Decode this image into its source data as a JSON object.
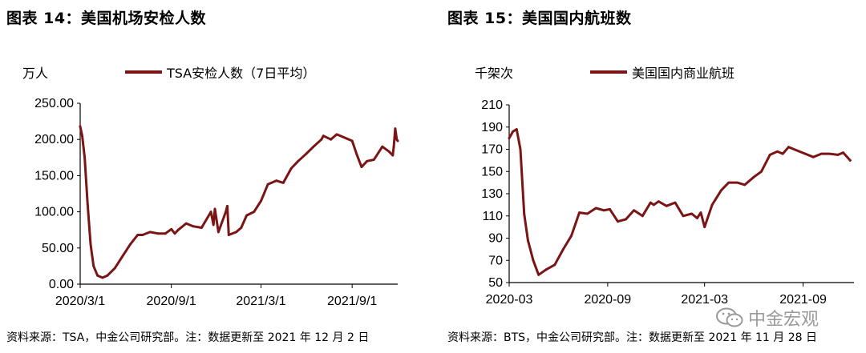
{
  "charts": [
    {
      "title": "图表 14：美国机场安检人数",
      "unit": "万人",
      "legend": "TSA安检人数（7日平均）",
      "source": "资料来源：TSA，中金公司研究部。注：数据更新至 2021 年 12 月 2 日"
    },
    {
      "title": "图表 15：美国国内航班数",
      "unit": "千架次",
      "legend": "美国国内商业航班",
      "source": "资料来源：BTS，中金公司研究部。注：数据更新至 2021 年 11 月 28 日"
    }
  ],
  "watermark": {
    "text": "中金宏观",
    "icon": "wechat-icon"
  },
  "colors": {
    "line": "#7b1414",
    "axis": "#000000"
  },
  "chart_data": [
    {
      "type": "line",
      "title": "图表 14：美国机场安检人数",
      "ylabel": "万人",
      "ylim": [
        0,
        250
      ],
      "yticks": [
        "0.00",
        "50.00",
        "100.00",
        "150.00",
        "200.00",
        "250.00"
      ],
      "xlim": [
        "2020-03-01",
        "2021-12-02"
      ],
      "xticks": [
        "2020/3/1",
        "2020/9/1",
        "2021/3/1",
        "2021/9/1"
      ],
      "x": [
        "2020-03-01",
        "2020-03-05",
        "2020-03-10",
        "2020-03-16",
        "2020-03-22",
        "2020-03-28",
        "2020-04-05",
        "2020-04-15",
        "2020-04-25",
        "2020-05-10",
        "2020-05-25",
        "2020-06-10",
        "2020-06-25",
        "2020-07-05",
        "2020-07-20",
        "2020-08-05",
        "2020-08-20",
        "2020-09-01",
        "2020-09-08",
        "2020-09-15",
        "2020-10-01",
        "2020-10-15",
        "2020-11-01",
        "2020-11-20",
        "2020-11-25",
        "2020-11-28",
        "2020-12-05",
        "2020-12-20",
        "2020-12-23",
        "2020-12-26",
        "2021-01-10",
        "2021-01-20",
        "2021-01-31",
        "2021-02-15",
        "2021-03-01",
        "2021-03-15",
        "2021-04-01",
        "2021-04-15",
        "2021-05-01",
        "2021-05-15",
        "2021-05-31",
        "2021-06-15",
        "2021-07-01",
        "2021-07-05",
        "2021-07-20",
        "2021-08-01",
        "2021-08-15",
        "2021-09-01",
        "2021-09-10",
        "2021-09-20",
        "2021-10-01",
        "2021-10-15",
        "2021-11-01",
        "2021-11-15",
        "2021-11-22",
        "2021-11-24",
        "2021-11-27",
        "2021-11-30",
        "2021-12-02"
      ],
      "series": [
        {
          "name": "TSA安检人数（7日平均）",
          "values": [
            218,
            205,
            175,
            110,
            55,
            25,
            12,
            9,
            12,
            22,
            38,
            55,
            68,
            68,
            72,
            70,
            70,
            76,
            70,
            75,
            84,
            80,
            78,
            100,
            82,
            104,
            72,
            100,
            108,
            68,
            72,
            78,
            95,
            100,
            115,
            138,
            143,
            140,
            160,
            170,
            180,
            190,
            200,
            205,
            200,
            207,
            203,
            198,
            180,
            162,
            170,
            172,
            190,
            183,
            178,
            190,
            215,
            200,
            198
          ]
        }
      ]
    },
    {
      "type": "line",
      "title": "图表 15：美国国内航班数",
      "ylabel": "千架次",
      "ylim": [
        50,
        210
      ],
      "yticks": [
        "50",
        "70",
        "90",
        "110",
        "130",
        "150",
        "170",
        "190",
        "210"
      ],
      "xlim": [
        "2020-03-01",
        "2021-12-05"
      ],
      "xticks": [
        "2020-03",
        "2020-09",
        "2021-03",
        "2021-09"
      ],
      "x": [
        "2020-03-01",
        "2020-03-08",
        "2020-03-15",
        "2020-03-22",
        "2020-03-29",
        "2020-04-05",
        "2020-04-15",
        "2020-04-25",
        "2020-05-10",
        "2020-05-25",
        "2020-06-10",
        "2020-06-25",
        "2020-07-10",
        "2020-07-25",
        "2020-08-10",
        "2020-08-25",
        "2020-09-05",
        "2020-09-20",
        "2020-10-05",
        "2020-10-20",
        "2020-11-05",
        "2020-11-20",
        "2020-11-26",
        "2020-12-05",
        "2020-12-20",
        "2021-01-05",
        "2021-01-20",
        "2021-02-05",
        "2021-02-15",
        "2021-02-22",
        "2021-03-01",
        "2021-03-15",
        "2021-04-01",
        "2021-04-15",
        "2021-05-01",
        "2021-05-15",
        "2021-06-01",
        "2021-06-15",
        "2021-07-01",
        "2021-07-15",
        "2021-07-25",
        "2021-08-05",
        "2021-08-20",
        "2021-09-05",
        "2021-09-20",
        "2021-10-05",
        "2021-10-20",
        "2021-11-05",
        "2021-11-15",
        "2021-11-28"
      ],
      "series": [
        {
          "name": "美国国内商业航班",
          "values": [
            180,
            186,
            188,
            170,
            112,
            88,
            70,
            57,
            62,
            66,
            80,
            92,
            113,
            112,
            117,
            115,
            116,
            105,
            107,
            115,
            110,
            122,
            120,
            123,
            119,
            122,
            110,
            112,
            108,
            113,
            100,
            120,
            133,
            140,
            140,
            138,
            145,
            150,
            165,
            168,
            166,
            172,
            169,
            166,
            163,
            166,
            166,
            165,
            167,
            160
          ]
        }
      ]
    }
  ]
}
